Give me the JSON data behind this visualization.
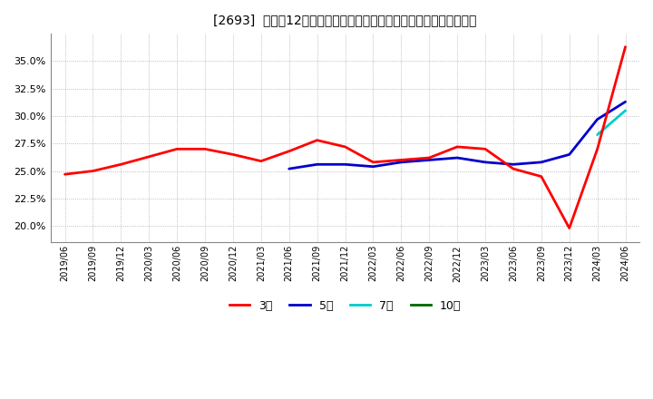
{
  "title": "[2693]  売上高12か月移動合計の対前年同期増減率の標準偏差の推移",
  "ylim": [
    0.185,
    0.375
  ],
  "yticks": [
    0.2,
    0.225,
    0.25,
    0.275,
    0.3,
    0.325,
    0.35
  ],
  "legend_labels": [
    "3年",
    "5年",
    "7年",
    "10年"
  ],
  "legend_colors": [
    "#ff0000",
    "#0000cc",
    "#00cccc",
    "#006600"
  ],
  "background_color": "#ffffff",
  "dates": [
    "2019/06",
    "2019/09",
    "2019/12",
    "2020/03",
    "2020/06",
    "2020/09",
    "2020/12",
    "2021/03",
    "2021/06",
    "2021/09",
    "2021/12",
    "2022/03",
    "2022/06",
    "2022/09",
    "2022/12",
    "2023/03",
    "2023/06",
    "2023/09",
    "2023/12",
    "2024/03",
    "2024/06"
  ],
  "series_3y": [
    0.247,
    0.25,
    0.256,
    0.263,
    0.27,
    0.27,
    0.265,
    0.259,
    0.268,
    0.278,
    0.272,
    0.258,
    0.26,
    0.262,
    0.272,
    0.27,
    0.252,
    0.245,
    0.198,
    0.27,
    0.363
  ],
  "series_5y": [
    null,
    null,
    null,
    null,
    null,
    null,
    null,
    null,
    0.252,
    0.256,
    0.256,
    0.254,
    0.258,
    0.26,
    0.262,
    0.258,
    0.256,
    0.258,
    0.265,
    0.297,
    0.313
  ],
  "series_7y": [
    null,
    null,
    null,
    null,
    null,
    null,
    null,
    null,
    null,
    null,
    null,
    null,
    null,
    null,
    null,
    null,
    null,
    null,
    null,
    0.283,
    0.305
  ],
  "series_10y": [
    null,
    null,
    null,
    null,
    null,
    null,
    null,
    null,
    null,
    null,
    null,
    null,
    null,
    null,
    null,
    null,
    null,
    null,
    null,
    null,
    null
  ]
}
